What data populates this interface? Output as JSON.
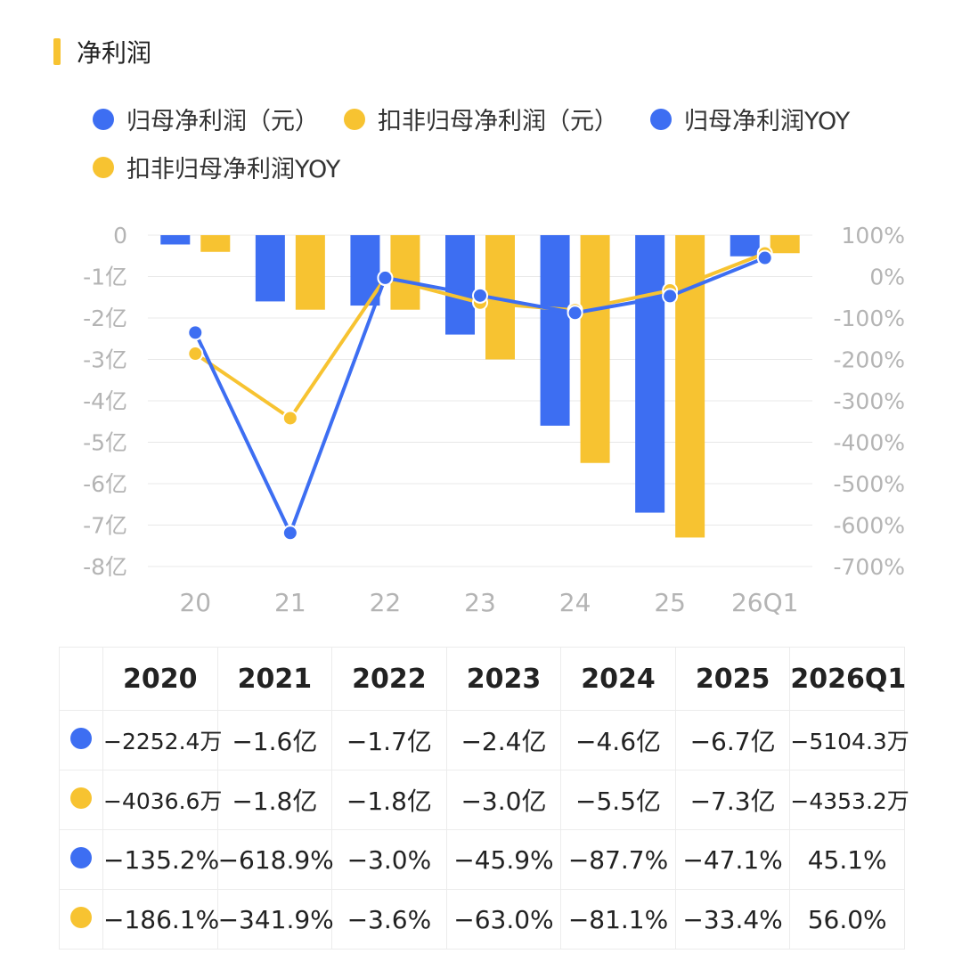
{
  "section": {
    "title": "净利润"
  },
  "legend": [
    {
      "label": "归母净利润（元）",
      "color": "#3d6ef2"
    },
    {
      "label": "扣非归母净利润（元）",
      "color": "#f7c331"
    },
    {
      "label": "归母净利润YOY",
      "color": "#3d6ef2"
    },
    {
      "label": "扣非归母净利润YOY",
      "color": "#f7c331"
    }
  ],
  "chart_data": {
    "type": "bar",
    "categories": [
      "20",
      "21",
      "22",
      "23",
      "24",
      "25",
      "26Q1"
    ],
    "y_left_ticks": [
      "0",
      "-1亿",
      "-2亿",
      "-3亿",
      "-4亿",
      "-5亿",
      "-6亿",
      "-7亿",
      "-8亿"
    ],
    "y_left_range": [
      -8,
      0
    ],
    "y_left_unit": "亿",
    "y_right_ticks": [
      "100%",
      "0%",
      "-100%",
      "-200%",
      "-300%",
      "-400%",
      "-500%",
      "-600%",
      "-700%"
    ],
    "y_right_range": [
      -700,
      100
    ],
    "grid": true,
    "series": [
      {
        "name": "归母净利润（元）",
        "type": "bar",
        "axis": "left",
        "color": "#3d6ef2",
        "values": [
          -0.2252,
          -1.6,
          -1.7,
          -2.4,
          -4.6,
          -6.7,
          -0.5104
        ]
      },
      {
        "name": "扣非归母净利润（元）",
        "type": "bar",
        "axis": "left",
        "color": "#f7c331",
        "values": [
          -0.4037,
          -1.8,
          -1.8,
          -3.0,
          -5.5,
          -7.3,
          -0.4353
        ]
      },
      {
        "name": "归母净利润YOY",
        "type": "line",
        "axis": "right",
        "color": "#3d6ef2",
        "values": [
          -135.2,
          -618.9,
          -3.0,
          -45.9,
          -87.7,
          -47.1,
          45.1
        ]
      },
      {
        "name": "扣非归母净利润YOY",
        "type": "line",
        "axis": "right",
        "color": "#f7c331",
        "values": [
          -186.1,
          -341.9,
          -3.6,
          -63.0,
          -81.1,
          -33.4,
          56.0
        ]
      }
    ]
  },
  "table": {
    "headers": [
      "2020",
      "2021",
      "2022",
      "2023",
      "2024",
      "2025",
      "2026Q1"
    ],
    "rows": [
      {
        "color": "#3d6ef2",
        "cells": [
          "−2252.4万",
          "−1.6亿",
          "−1.7亿",
          "−2.4亿",
          "−4.6亿",
          "−6.7亿",
          "−5104.3万"
        ]
      },
      {
        "color": "#f7c331",
        "cells": [
          "−4036.6万",
          "−1.8亿",
          "−1.8亿",
          "−3.0亿",
          "−5.5亿",
          "−7.3亿",
          "−4353.2万"
        ]
      },
      {
        "color": "#3d6ef2",
        "cells": [
          "−135.2%",
          "−618.9%",
          "−3.0%",
          "−45.9%",
          "−87.7%",
          "−47.1%",
          "45.1%"
        ]
      },
      {
        "color": "#f7c331",
        "cells": [
          "−186.1%",
          "−341.9%",
          "−3.6%",
          "−63.0%",
          "−81.1%",
          "−33.4%",
          "56.0%"
        ]
      }
    ]
  }
}
